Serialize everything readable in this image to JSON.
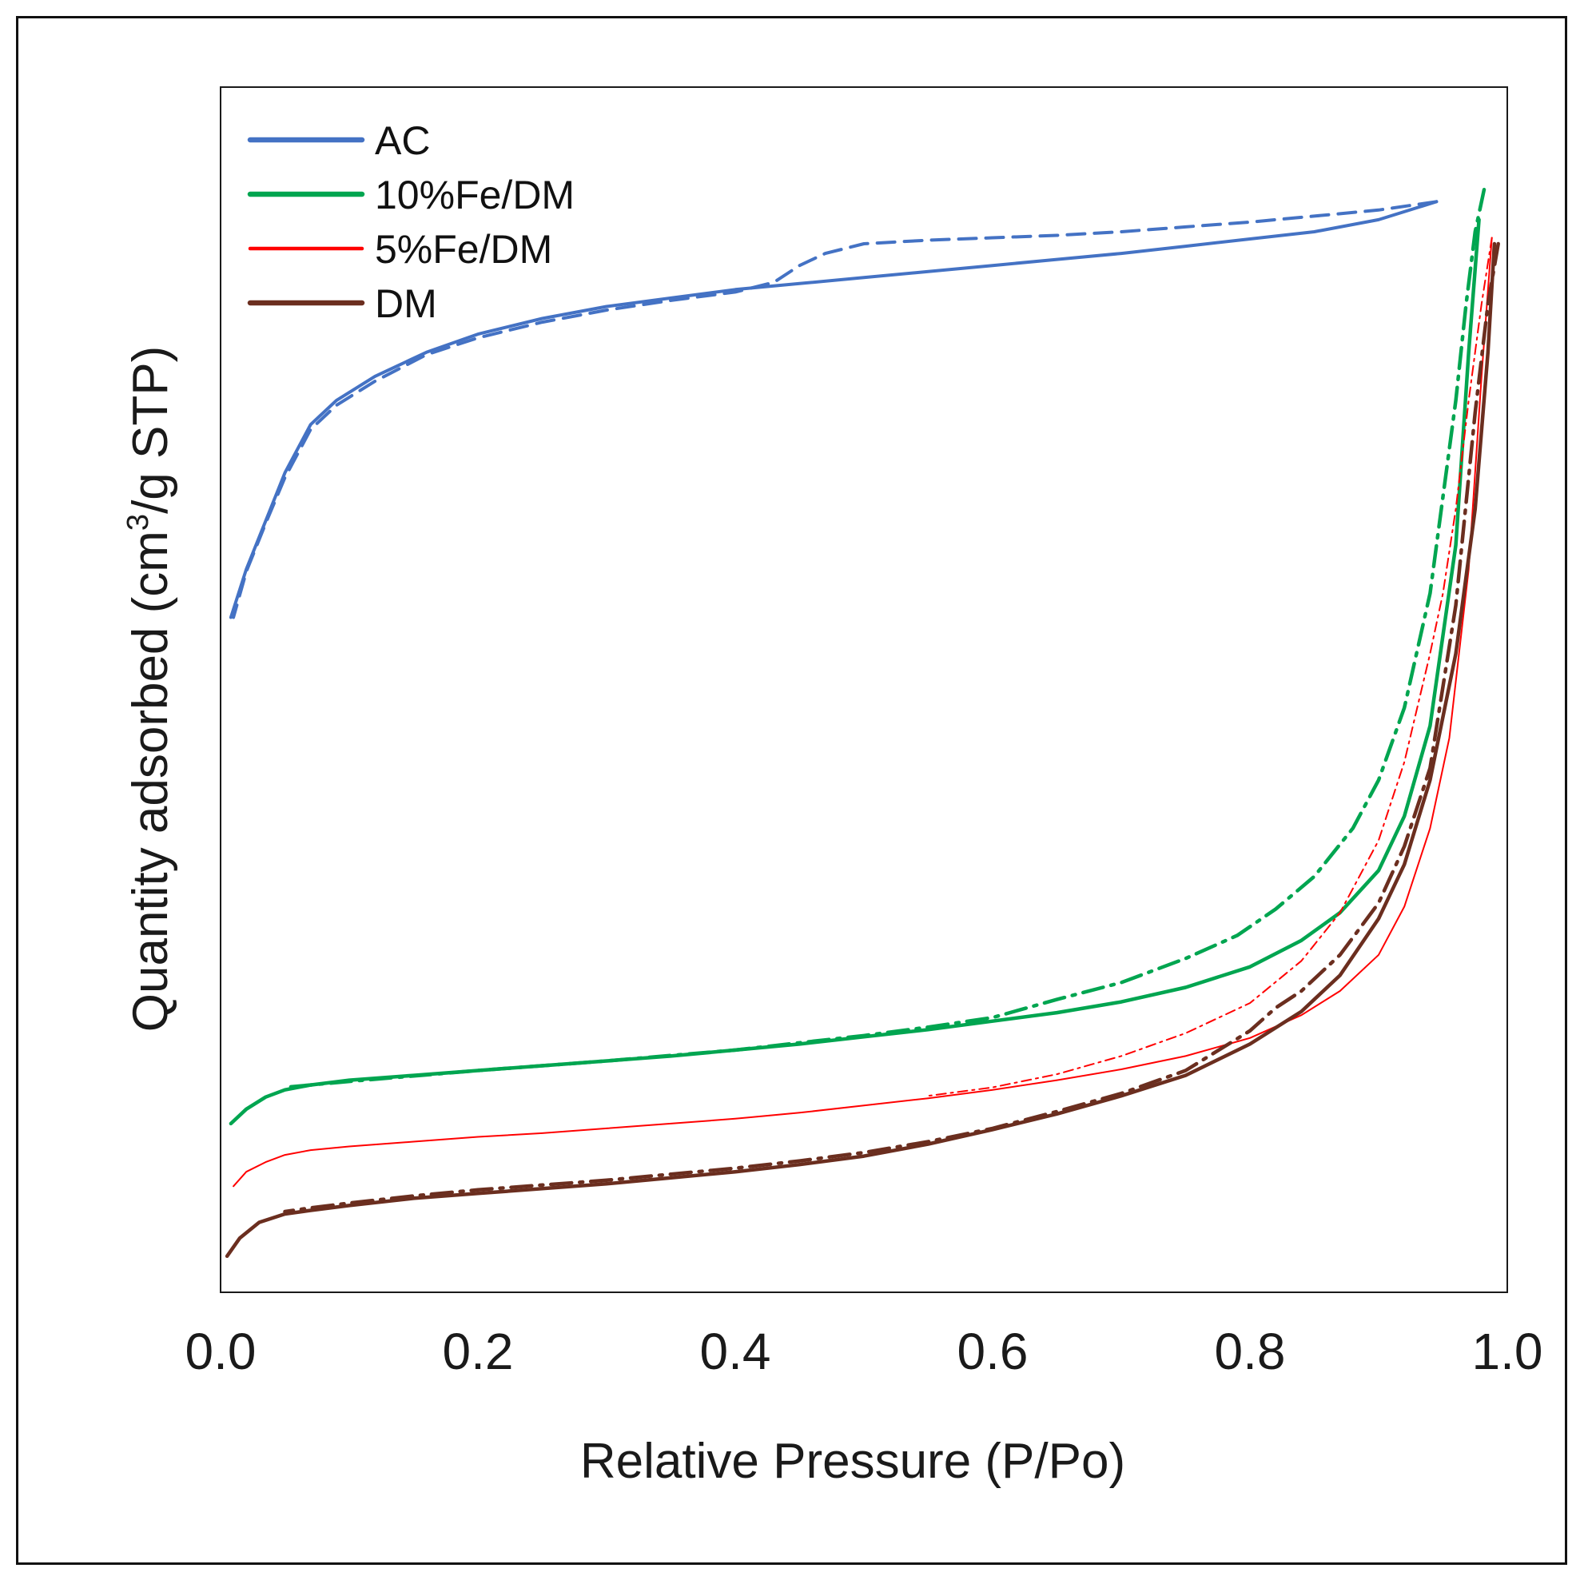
{
  "chart_data": {
    "type": "line",
    "title": "",
    "xlabel": "Relative Pressure (P/Po)",
    "ylabel": "Quantity adsorbed (cm³/g STP)",
    "ylabel_parts": {
      "before": "Quantity adsorbed (cm",
      "superscript": "3",
      "after": "/g STP)"
    },
    "xlim": [
      0.0,
      1.0
    ],
    "ylim": [
      0,
      100
    ],
    "y_ticks_shown": false,
    "x_ticks": [
      {
        "value": 0.0,
        "label": "0.0"
      },
      {
        "value": 0.2,
        "label": "0.2"
      },
      {
        "value": 0.4,
        "label": "0.4"
      },
      {
        "value": 0.6,
        "label": "0.6"
      },
      {
        "value": 0.8,
        "label": "0.8"
      },
      {
        "value": 1.0,
        "label": "1.0"
      }
    ],
    "grid": false,
    "legend_position": "top-left",
    "series": [
      {
        "name": "AC",
        "color": "#4472c4",
        "adsorption": {
          "x": [
            0.008,
            0.02,
            0.035,
            0.05,
            0.07,
            0.09,
            0.12,
            0.16,
            0.2,
            0.25,
            0.3,
            0.35,
            0.4,
            0.45,
            0.5,
            0.55,
            0.6,
            0.65,
            0.7,
            0.75,
            0.8,
            0.85,
            0.9,
            0.945
          ],
          "y": [
            56,
            60,
            64,
            68,
            72,
            74,
            76,
            78,
            79.5,
            80.8,
            81.8,
            82.5,
            83.2,
            83.7,
            84.2,
            84.7,
            85.2,
            85.7,
            86.2,
            86.8,
            87.4,
            88,
            89,
            90.5
          ]
        },
        "desorption": {
          "x": [
            0.945,
            0.9,
            0.85,
            0.8,
            0.75,
            0.7,
            0.65,
            0.6,
            0.55,
            0.5,
            0.47,
            0.45,
            0.43,
            0.4,
            0.35,
            0.3,
            0.25,
            0.2,
            0.16,
            0.12,
            0.09,
            0.07,
            0.05,
            0.035,
            0.02,
            0.01
          ],
          "y": [
            90.5,
            89.8,
            89.3,
            88.8,
            88.4,
            88,
            87.7,
            87.5,
            87.3,
            87,
            86.2,
            85.2,
            83.8,
            83,
            82.3,
            81.5,
            80.5,
            79.2,
            77.8,
            75.6,
            73.6,
            71.6,
            67.6,
            63.8,
            59.8,
            56
          ]
        }
      },
      {
        "name": "10%Fe/DM",
        "color": "#00a550",
        "adsorption": {
          "x": [
            0.008,
            0.02,
            0.035,
            0.05,
            0.07,
            0.1,
            0.15,
            0.2,
            0.25,
            0.3,
            0.35,
            0.4,
            0.45,
            0.5,
            0.55,
            0.6,
            0.65,
            0.7,
            0.75,
            0.8,
            0.84,
            0.87,
            0.9,
            0.92,
            0.94,
            0.96,
            0.97,
            0.978
          ],
          "y": [
            14,
            15.2,
            16.2,
            16.8,
            17.2,
            17.6,
            18,
            18.4,
            18.8,
            19.2,
            19.6,
            20.1,
            20.6,
            21.2,
            21.8,
            22.5,
            23.2,
            24.1,
            25.3,
            27,
            29.2,
            31.5,
            35,
            39.5,
            47,
            62,
            78,
            89
          ]
        },
        "desorption": {
          "x": [
            0.982,
            0.975,
            0.968,
            0.96,
            0.95,
            0.94,
            0.92,
            0.9,
            0.88,
            0.85,
            0.82,
            0.79,
            0.75,
            0.7,
            0.65,
            0.6,
            0.55,
            0.5,
            0.45,
            0.4,
            0.3,
            0.2,
            0.1,
            0.05
          ],
          "y": [
            91.5,
            88,
            82,
            74,
            66,
            58,
            48.5,
            42.5,
            38.5,
            34.5,
            31.8,
            29.6,
            27.7,
            25.7,
            24.3,
            22.8,
            22,
            21.3,
            20.7,
            20.1,
            19.2,
            18.4,
            17.5,
            17
          ]
        }
      },
      {
        "name": "5%Fe/DM",
        "color": "#ff0000",
        "adsorption": {
          "x": [
            0.01,
            0.02,
            0.035,
            0.05,
            0.07,
            0.1,
            0.15,
            0.2,
            0.25,
            0.3,
            0.35,
            0.4,
            0.45,
            0.5,
            0.55,
            0.6,
            0.65,
            0.7,
            0.75,
            0.8,
            0.84,
            0.87,
            0.9,
            0.92,
            0.94,
            0.955,
            0.97,
            0.98,
            0.988
          ],
          "y": [
            8.8,
            10,
            10.8,
            11.4,
            11.8,
            12.1,
            12.5,
            12.9,
            13.2,
            13.6,
            14,
            14.4,
            14.9,
            15.5,
            16.1,
            16.8,
            17.6,
            18.5,
            19.6,
            21.1,
            23,
            25,
            28,
            32,
            38.5,
            46,
            60,
            76,
            87.5
          ]
        },
        "desorption": {
          "x": [
            0.988,
            0.98,
            0.97,
            0.96,
            0.95,
            0.94,
            0.92,
            0.9,
            0.87,
            0.84,
            0.8,
            0.75,
            0.7,
            0.65,
            0.6,
            0.55
          ],
          "y": [
            87.5,
            82,
            74,
            65,
            58,
            53,
            44,
            37.5,
            31.5,
            27.5,
            24,
            21.5,
            19.6,
            18.1,
            17,
            16.3
          ]
        }
      },
      {
        "name": "DM",
        "color": "#6b2e1f",
        "adsorption": {
          "x": [
            0.005,
            0.015,
            0.03,
            0.05,
            0.07,
            0.1,
            0.15,
            0.2,
            0.25,
            0.3,
            0.35,
            0.4,
            0.45,
            0.5,
            0.55,
            0.6,
            0.65,
            0.7,
            0.75,
            0.8,
            0.84,
            0.87,
            0.9,
            0.92,
            0.94,
            0.96,
            0.975,
            0.985,
            0.99
          ],
          "y": [
            3,
            4.5,
            5.8,
            6.5,
            6.8,
            7.2,
            7.8,
            8.2,
            8.6,
            9,
            9.5,
            10,
            10.6,
            11.3,
            12.3,
            13.5,
            14.8,
            16.3,
            18,
            20.6,
            23.3,
            26.3,
            31,
            35.5,
            42.5,
            53,
            65,
            78,
            87
          ]
        },
        "desorption": {
          "x": [
            0.993,
            0.985,
            0.975,
            0.96,
            0.94,
            0.92,
            0.9,
            0.87,
            0.84,
            0.82,
            0.8,
            0.75,
            0.7,
            0.65,
            0.6,
            0.55,
            0.5,
            0.45,
            0.4,
            0.35,
            0.3,
            0.25,
            0.2,
            0.15,
            0.1,
            0.07,
            0.05
          ],
          "y": [
            87,
            82,
            73,
            57,
            43.5,
            37,
            32.3,
            28,
            25,
            23.6,
            21.7,
            18.4,
            16.5,
            15,
            13.6,
            12.5,
            11.6,
            10.9,
            10.3,
            9.8,
            9.3,
            8.9,
            8.5,
            8,
            7.4,
            7,
            6.7
          ]
        }
      }
    ]
  }
}
